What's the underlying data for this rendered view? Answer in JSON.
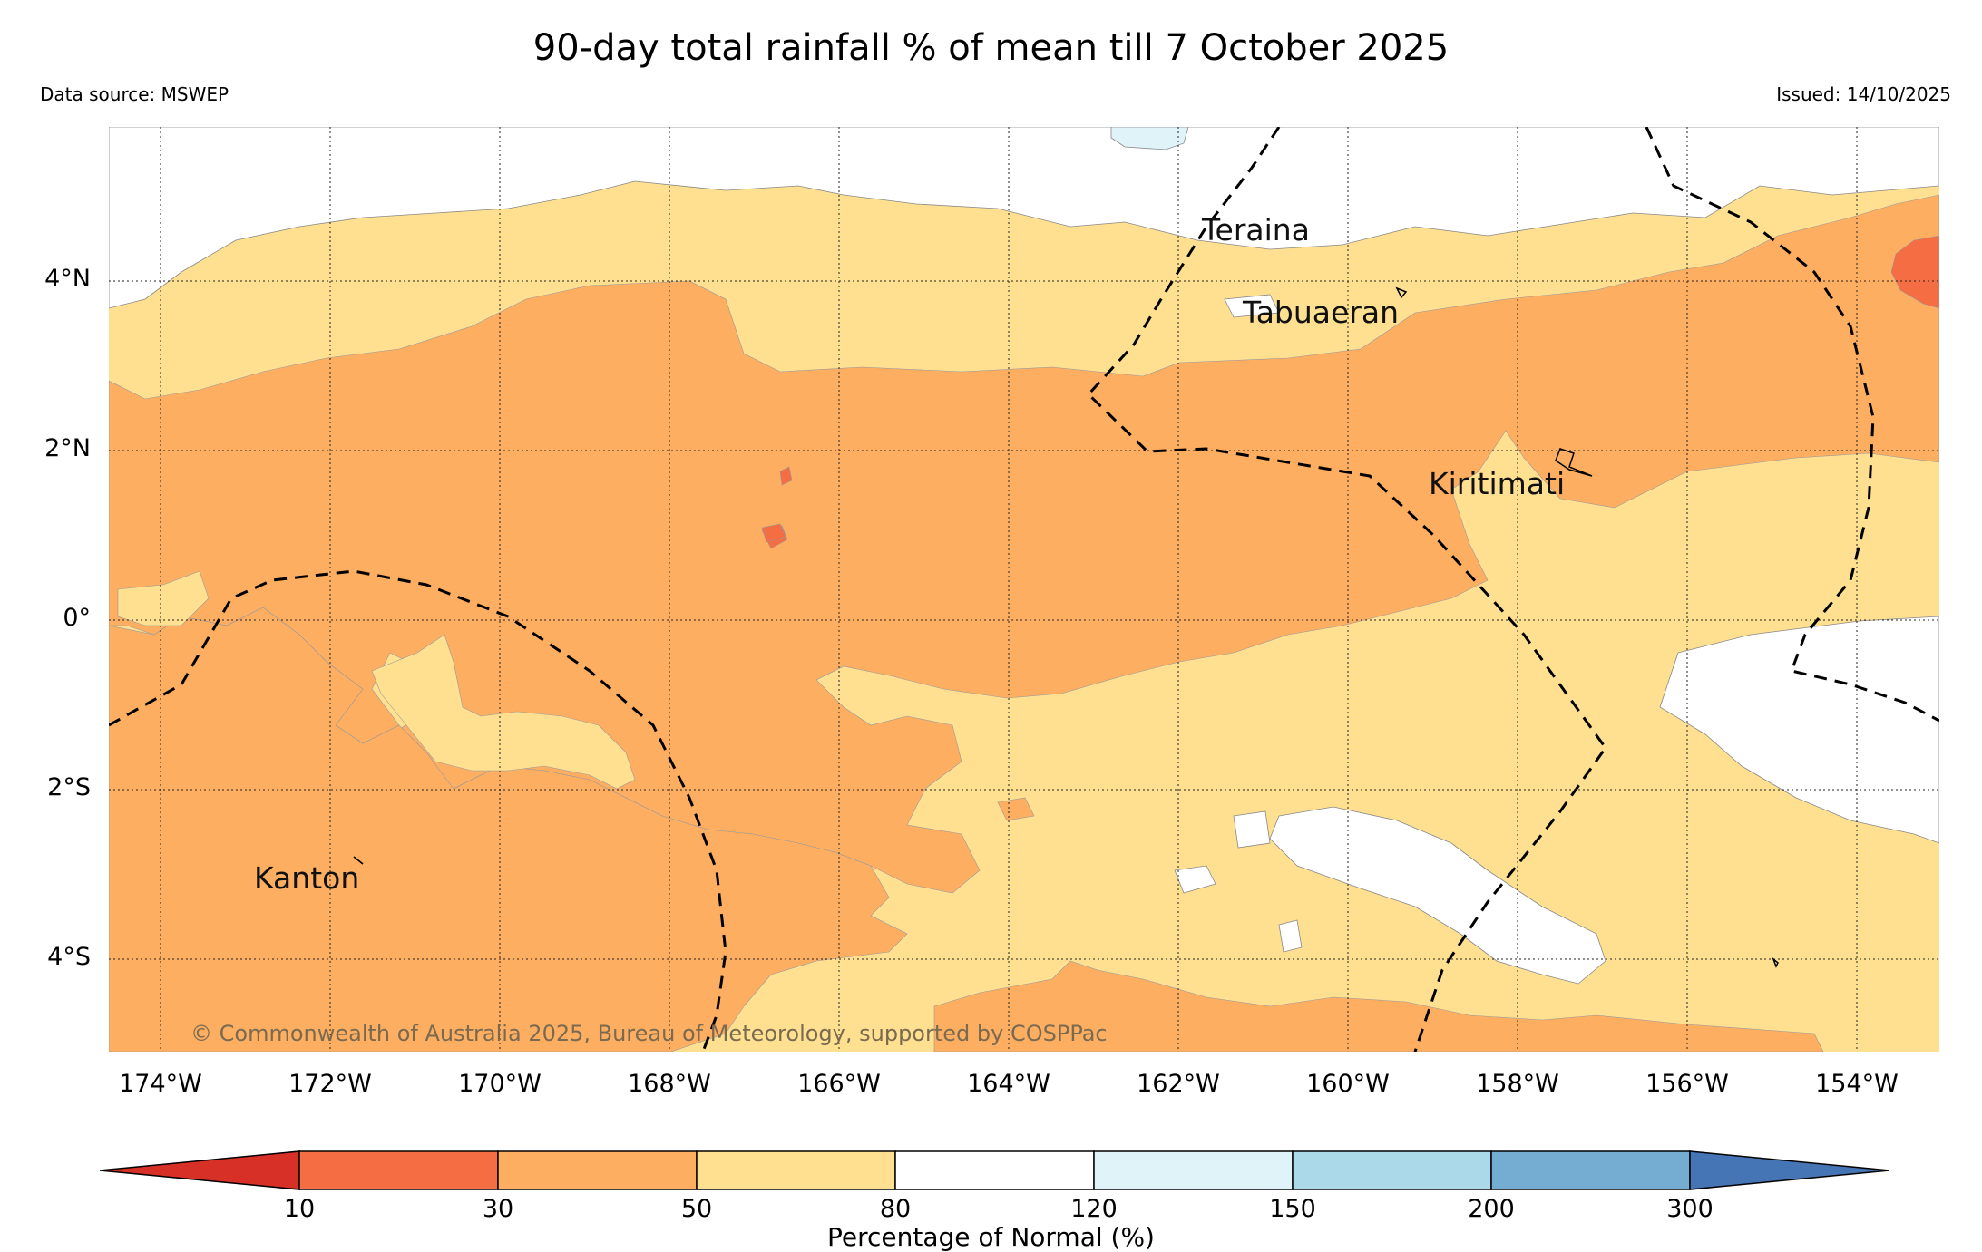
{
  "header": {
    "title": "90-day total rainfall % of mean till 7 October 2025",
    "data_source": "Data source: MSWEP",
    "issued": "Issued: 14/10/2025"
  },
  "map": {
    "lat_labels": [
      "4°N",
      "2°N",
      "0°",
      "2°S",
      "4°S"
    ],
    "lon_labels": [
      "174°W",
      "172°W",
      "170°W",
      "168°W",
      "166°W",
      "164°W",
      "162°W",
      "160°W",
      "158°W",
      "156°W",
      "154°W"
    ],
    "places": [
      "Teraina",
      "Tabuaeran",
      "Kiritimati",
      "Kanton"
    ],
    "copyright": "© Commonwealth of Australia 2025, Bureau of Meteorology, supported by COSPPac"
  },
  "colorbar": {
    "ticks": [
      "10",
      "30",
      "50",
      "80",
      "120",
      "150",
      "200",
      "300"
    ],
    "label": "Percentage of Normal (%)",
    "colors": [
      "#d73027",
      "#f46d43",
      "#fdae61",
      "#fee090",
      "#ffffff",
      "#e0f3f8",
      "#abd9e9",
      "#74add1",
      "#4575b4"
    ]
  }
}
